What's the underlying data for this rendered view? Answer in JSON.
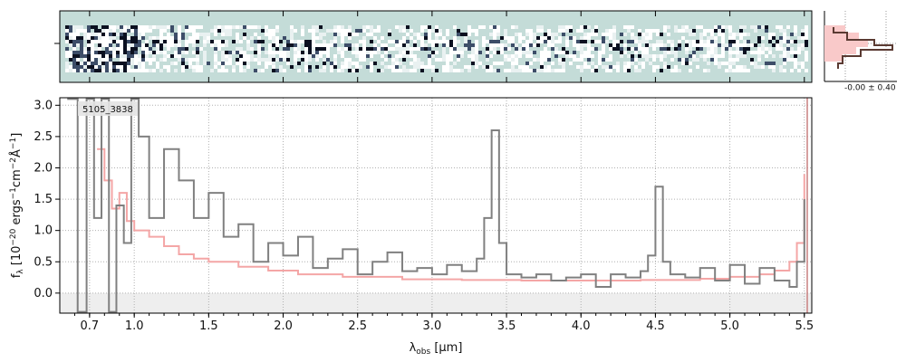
{
  "chart_data": {
    "type": "line",
    "object_label": "5105_3838",
    "xlabel": "λ_obs [μm]",
    "ylabel": "f_λ [10^-20 ergs^-1cm^-2Å^-1]",
    "xlim": [
      0.5,
      5.55
    ],
    "ylim": [
      -0.32,
      3.12
    ],
    "grid": true,
    "x_tick_labels": [
      "0.7",
      "1.0",
      "1.5",
      "2.0",
      "2.5",
      "3.0",
      "3.5",
      "4.0",
      "4.5",
      "5.0",
      "5.5"
    ],
    "y_ticks": [
      0.0,
      0.5,
      1.0,
      1.5,
      2.0,
      2.5,
      3.0
    ],
    "y_tick_labels": [
      "0.0",
      "0.5",
      "1.0",
      "1.5",
      "2.0",
      "2.5",
      "3.0"
    ],
    "series": [
      {
        "color": "#808080",
        "x": [
          0.55,
          0.62,
          0.68,
          0.73,
          0.78,
          0.83,
          0.88,
          0.93,
          0.98,
          1.03,
          1.1,
          1.2,
          1.3,
          1.4,
          1.5,
          1.6,
          1.7,
          1.8,
          1.9,
          2.0,
          2.1,
          2.2,
          2.3,
          2.4,
          2.5,
          2.6,
          2.7,
          2.8,
          2.9,
          3.0,
          3.1,
          3.2,
          3.3,
          3.35,
          3.4,
          3.45,
          3.5,
          3.6,
          3.7,
          3.8,
          3.9,
          4.0,
          4.1,
          4.2,
          4.3,
          4.4,
          4.45,
          4.5,
          4.55,
          4.6,
          4.7,
          4.8,
          4.9,
          5.0,
          5.1,
          5.2,
          5.3,
          5.4,
          5.45,
          5.5
        ],
        "y": [
          3.1,
          -0.3,
          3.1,
          1.2,
          3.1,
          -0.3,
          1.4,
          0.8,
          3.1,
          2.5,
          1.2,
          2.3,
          1.8,
          1.2,
          1.6,
          0.9,
          1.1,
          0.5,
          0.8,
          0.6,
          0.9,
          0.4,
          0.55,
          0.7,
          0.3,
          0.5,
          0.65,
          0.35,
          0.4,
          0.3,
          0.45,
          0.35,
          0.55,
          1.2,
          2.6,
          0.8,
          0.3,
          0.25,
          0.3,
          0.2,
          0.25,
          0.3,
          0.1,
          0.3,
          0.25,
          0.35,
          0.6,
          1.7,
          0.5,
          0.3,
          0.25,
          0.4,
          0.2,
          0.45,
          0.15,
          0.4,
          0.2,
          0.1,
          0.5,
          1.5
        ]
      },
      {
        "color": "#f4a6a6",
        "x": [
          0.75,
          0.8,
          0.85,
          0.9,
          0.95,
          1.0,
          1.1,
          1.2,
          1.3,
          1.4,
          1.5,
          1.7,
          1.9,
          2.1,
          2.4,
          2.8,
          3.2,
          3.6,
          4.0,
          4.4,
          4.8,
          5.0,
          5.2,
          5.3,
          5.4,
          5.45,
          5.5
        ],
        "y": [
          2.3,
          1.8,
          1.35,
          1.6,
          1.15,
          1.0,
          0.9,
          0.75,
          0.62,
          0.55,
          0.5,
          0.42,
          0.36,
          0.3,
          0.26,
          0.22,
          0.21,
          0.2,
          0.2,
          0.21,
          0.23,
          0.26,
          0.3,
          0.36,
          0.5,
          0.8,
          1.9
        ]
      }
    ],
    "histogram": {
      "label": "-0.00 ± 0.40"
    }
  }
}
